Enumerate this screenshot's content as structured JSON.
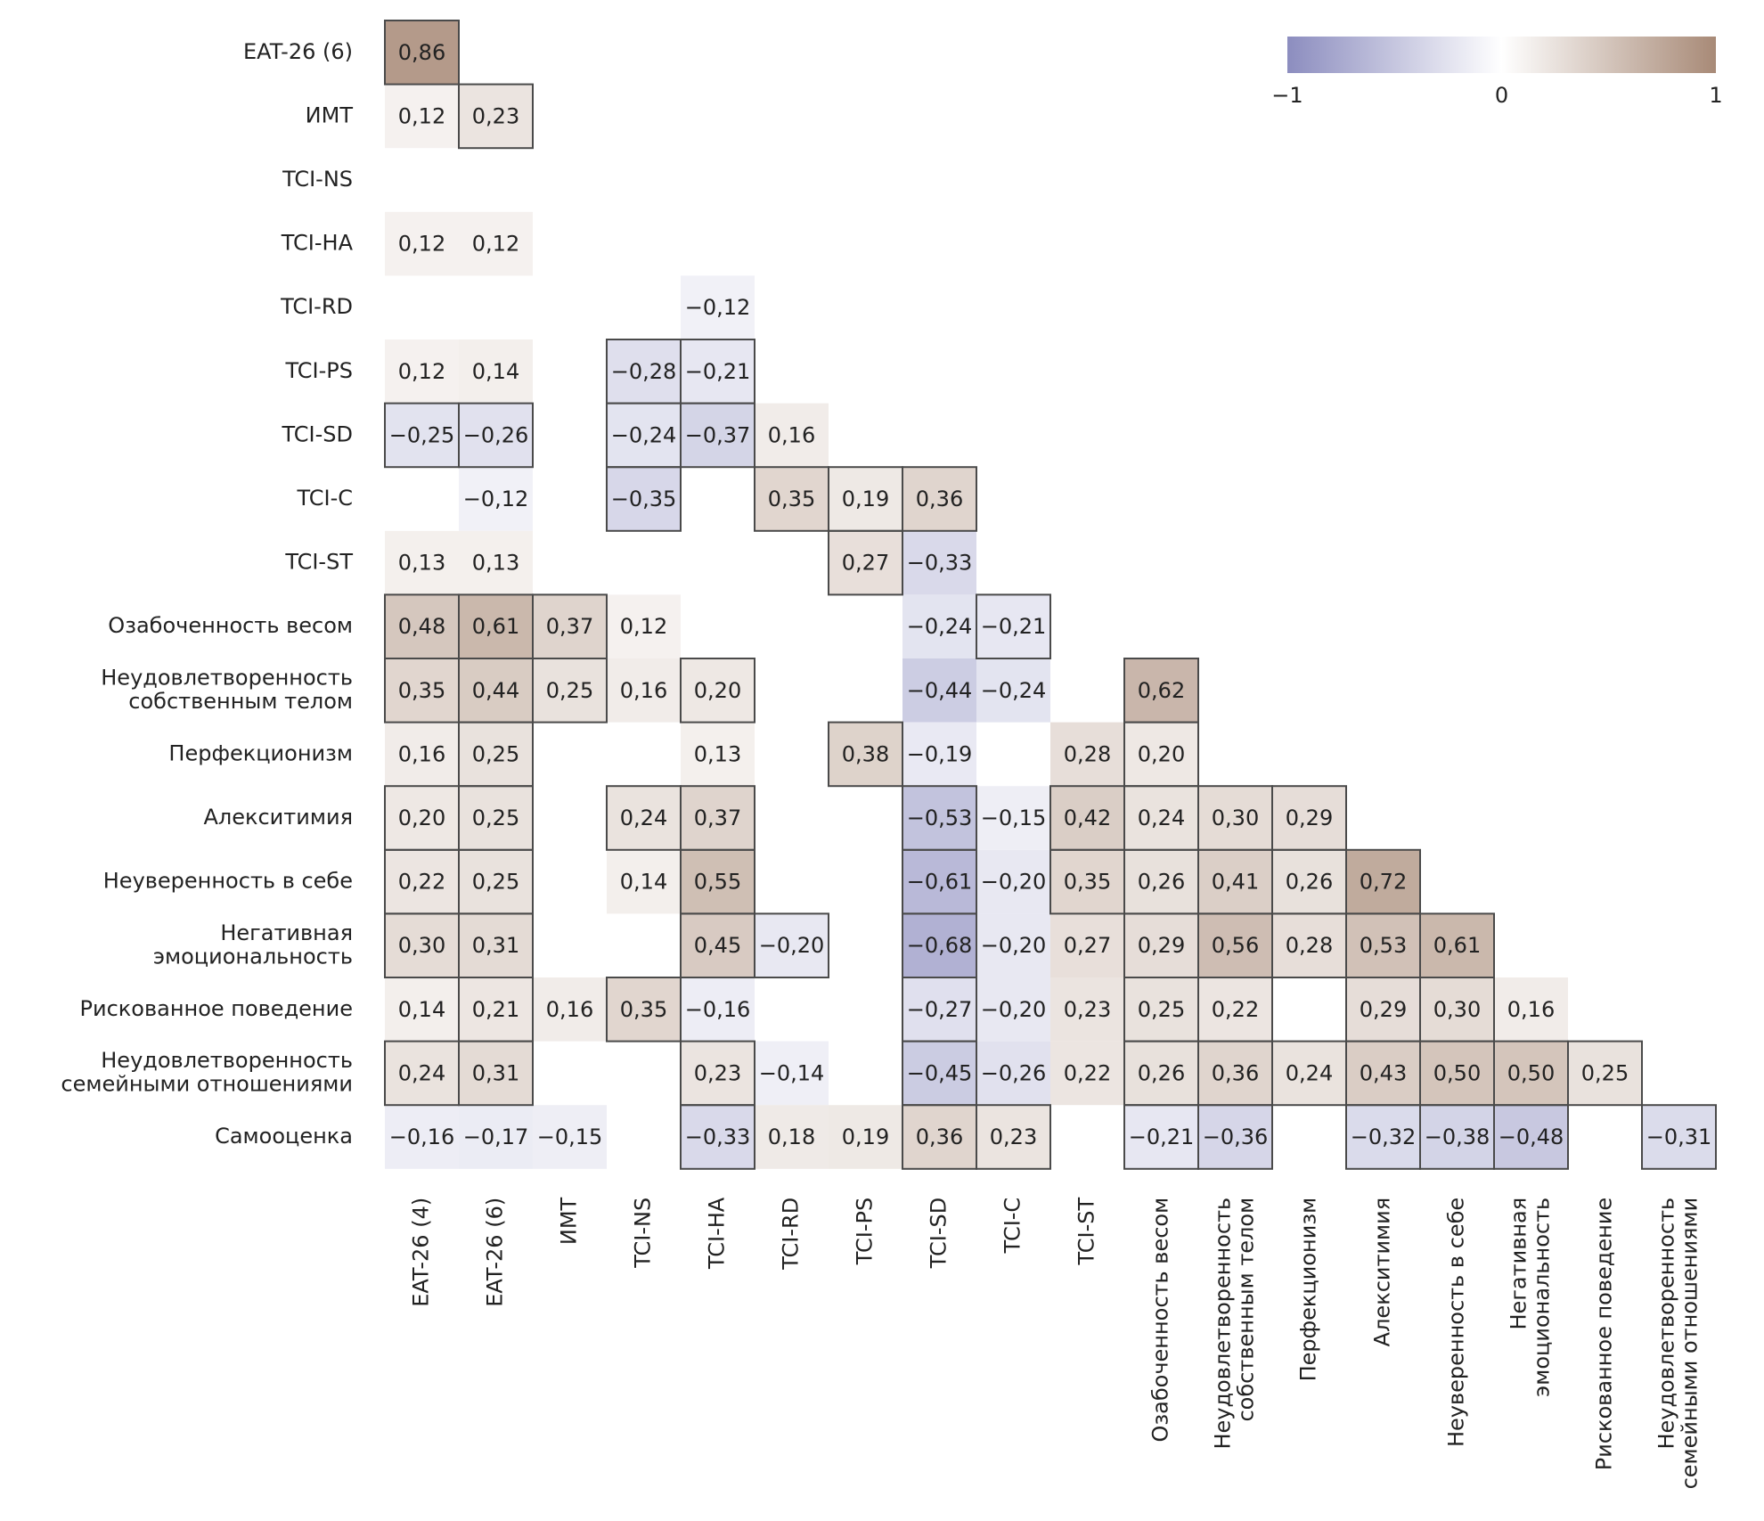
{
  "chart_data": {
    "type": "heatmap",
    "rows": [
      "EAT-26 (6)",
      "ИМТ",
      "TCI-NS",
      "TCI-HA",
      "TCI-RD",
      "TCI-PS",
      "TCI-SD",
      "TCI-C",
      "TCI-ST",
      "Озабоченность весом",
      "Неудовлетворенность\nсобственным телом",
      "Перфекционизм",
      "Алекситимия",
      "Неуверенность в себе",
      "Негативная\nэмоциональность",
      "Рискованное поведение",
      "Неудовлетворенность\nсемейными отношениями",
      "Самооценка"
    ],
    "columns": [
      "EAT-26 (4)",
      "EAT-26 (6)",
      "ИМТ",
      "TCI-NS",
      "TCI-HA",
      "TCI-RD",
      "TCI-PS",
      "TCI-SD",
      "TCI-C",
      "TCI-ST",
      "Озабоченность весом",
      "Неудовлетворенность\nсобственным телом",
      "Перфекционизм",
      "Алекситимия",
      "Неуверенность в себе",
      "Негативная\nэмоциональность",
      "Рискованное поведение",
      "Неудовлетворенность\nсемейными отношениями"
    ],
    "values": [
      [
        0.86,
        null,
        null,
        null,
        null,
        null,
        null,
        null,
        null,
        null,
        null,
        null,
        null,
        null,
        null,
        null,
        null,
        null
      ],
      [
        0.12,
        0.23,
        null,
        null,
        null,
        null,
        null,
        null,
        null,
        null,
        null,
        null,
        null,
        null,
        null,
        null,
        null,
        null
      ],
      [
        null,
        null,
        null,
        null,
        null,
        null,
        null,
        null,
        null,
        null,
        null,
        null,
        null,
        null,
        null,
        null,
        null,
        null
      ],
      [
        0.12,
        0.12,
        null,
        null,
        null,
        null,
        null,
        null,
        null,
        null,
        null,
        null,
        null,
        null,
        null,
        null,
        null,
        null
      ],
      [
        null,
        null,
        null,
        null,
        -0.12,
        null,
        null,
        null,
        null,
        null,
        null,
        null,
        null,
        null,
        null,
        null,
        null,
        null
      ],
      [
        0.12,
        0.14,
        null,
        -0.28,
        -0.21,
        null,
        null,
        null,
        null,
        null,
        null,
        null,
        null,
        null,
        null,
        null,
        null,
        null
      ],
      [
        -0.25,
        -0.26,
        null,
        -0.24,
        -0.37,
        0.16,
        null,
        null,
        null,
        null,
        null,
        null,
        null,
        null,
        null,
        null,
        null,
        null
      ],
      [
        null,
        -0.12,
        null,
        -0.35,
        null,
        0.35,
        0.19,
        0.36,
        null,
        null,
        null,
        null,
        null,
        null,
        null,
        null,
        null,
        null
      ],
      [
        0.13,
        0.13,
        null,
        null,
        null,
        null,
        0.27,
        -0.33,
        null,
        null,
        null,
        null,
        null,
        null,
        null,
        null,
        null,
        null
      ],
      [
        0.48,
        0.61,
        0.37,
        0.12,
        null,
        null,
        null,
        -0.24,
        -0.21,
        null,
        null,
        null,
        null,
        null,
        null,
        null,
        null,
        null
      ],
      [
        0.35,
        0.44,
        0.25,
        0.16,
        0.2,
        null,
        null,
        -0.44,
        -0.24,
        null,
        0.62,
        null,
        null,
        null,
        null,
        null,
        null,
        null
      ],
      [
        0.16,
        0.25,
        null,
        null,
        0.13,
        null,
        0.38,
        -0.19,
        null,
        0.28,
        0.2,
        null,
        null,
        null,
        null,
        null,
        null,
        null
      ],
      [
        0.2,
        0.25,
        null,
        0.24,
        0.37,
        null,
        null,
        -0.53,
        -0.15,
        0.42,
        0.24,
        0.3,
        0.29,
        null,
        null,
        null,
        null,
        null
      ],
      [
        0.22,
        0.25,
        null,
        0.14,
        0.55,
        null,
        null,
        -0.61,
        -0.2,
        0.35,
        0.26,
        0.41,
        0.26,
        0.72,
        null,
        null,
        null,
        null
      ],
      [
        0.3,
        0.31,
        null,
        null,
        0.45,
        -0.2,
        null,
        -0.68,
        -0.2,
        0.27,
        0.29,
        0.56,
        0.28,
        0.53,
        0.61,
        null,
        null,
        null
      ],
      [
        0.14,
        0.21,
        0.16,
        0.35,
        -0.16,
        null,
        null,
        -0.27,
        -0.2,
        0.23,
        0.25,
        0.22,
        null,
        0.29,
        0.3,
        0.16,
        null,
        null
      ],
      [
        0.24,
        0.31,
        null,
        null,
        0.23,
        -0.14,
        null,
        -0.45,
        -0.26,
        0.22,
        0.26,
        0.36,
        0.24,
        0.43,
        0.5,
        0.5,
        0.25,
        null
      ],
      [
        -0.16,
        -0.17,
        -0.15,
        null,
        -0.33,
        0.18,
        0.19,
        0.36,
        0.23,
        null,
        -0.21,
        -0.36,
        null,
        -0.32,
        -0.38,
        -0.48,
        null,
        -0.31
      ]
    ],
    "value_labels": [
      [
        "0,86",
        null,
        null,
        null,
        null,
        null,
        null,
        null,
        null,
        null,
        null,
        null,
        null,
        null,
        null,
        null,
        null,
        null
      ],
      [
        "0,12",
        "0,23",
        null,
        null,
        null,
        null,
        null,
        null,
        null,
        null,
        null,
        null,
        null,
        null,
        null,
        null,
        null,
        null
      ],
      [
        null,
        null,
        null,
        null,
        null,
        null,
        null,
        null,
        null,
        null,
        null,
        null,
        null,
        null,
        null,
        null,
        null,
        null
      ],
      [
        "0,12",
        "0,12",
        null,
        null,
        null,
        null,
        null,
        null,
        null,
        null,
        null,
        null,
        null,
        null,
        null,
        null,
        null,
        null
      ],
      [
        null,
        null,
        null,
        null,
        "−0,12",
        null,
        null,
        null,
        null,
        null,
        null,
        null,
        null,
        null,
        null,
        null,
        null,
        null
      ],
      [
        "0,12",
        "0,14",
        null,
        "−0,28",
        "−0,21",
        null,
        null,
        null,
        null,
        null,
        null,
        null,
        null,
        null,
        null,
        null,
        null,
        null
      ],
      [
        "−0,25",
        "−0,26",
        null,
        "−0,24",
        "−0,37",
        "0,16",
        null,
        null,
        null,
        null,
        null,
        null,
        null,
        null,
        null,
        null,
        null,
        null
      ],
      [
        null,
        "−0,12",
        null,
        "−0,35",
        null,
        "0,35",
        "0,19",
        "0,36",
        null,
        null,
        null,
        null,
        null,
        null,
        null,
        null,
        null,
        null
      ],
      [
        "0,13",
        "0,13",
        null,
        null,
        null,
        null,
        "0,27",
        "−0,33",
        null,
        null,
        null,
        null,
        null,
        null,
        null,
        null,
        null,
        null
      ],
      [
        "0,48",
        "0,61",
        "0,37",
        "0,12",
        null,
        null,
        null,
        "−0,24",
        "−0,21",
        null,
        null,
        null,
        null,
        null,
        null,
        null,
        null,
        null
      ],
      [
        "0,35",
        "0,44",
        "0,25",
        "0,16",
        "0,20",
        null,
        null,
        "−0,44",
        "−0,24",
        null,
        "0,62",
        null,
        null,
        null,
        null,
        null,
        null,
        null
      ],
      [
        "0,16",
        "0,25",
        null,
        null,
        "0,13",
        null,
        "0,38",
        "−0,19",
        null,
        "0,28",
        "0,20",
        null,
        null,
        null,
        null,
        null,
        null,
        null
      ],
      [
        "0,20",
        "0,25",
        null,
        "0,24",
        "0,37",
        null,
        null,
        "−0,53",
        "−0,15",
        "0,42",
        "0,24",
        "0,30",
        "0,29",
        null,
        null,
        null,
        null,
        null
      ],
      [
        "0,22",
        "0,25",
        null,
        "0,14",
        "0,55",
        null,
        null,
        "−0,61",
        "−0,20",
        "0,35",
        "0,26",
        "0,41",
        "0,26",
        "0,72",
        null,
        null,
        null,
        null
      ],
      [
        "0,30",
        "0,31",
        null,
        null,
        "0,45",
        "−0,20",
        null,
        "−0,68",
        "−0,20",
        "0,27",
        "0,29",
        "0,56",
        "0,28",
        "0,53",
        "0,61",
        null,
        null,
        null
      ],
      [
        "0,14",
        "0,21",
        "0,16",
        "0,35",
        "−0,16",
        null,
        null,
        "−0,27",
        "−0,20",
        "0,23",
        "0,25",
        "0,22",
        null,
        "0,29",
        "0,30",
        "0,16",
        null,
        null
      ],
      [
        "0,24",
        "0,31",
        null,
        null,
        "0,23",
        "−0,14",
        null,
        "−0,45",
        "−0,26",
        "0,22",
        "0,26",
        "0,36",
        "0,24",
        "0,43",
        "0,50",
        "0,50",
        "0,25",
        null
      ],
      [
        "−0,16",
        "−0,17",
        "−0,15",
        null,
        "−0,33",
        "0,18",
        "0,19",
        "0,36",
        "0,23",
        null,
        "−0,21",
        "−0,36",
        null,
        "−0,32",
        "−0,38",
        "−0,48",
        null,
        "−0,31"
      ]
    ],
    "outlined": [
      [
        true,
        false,
        false,
        false,
        false,
        false,
        false,
        false,
        false,
        false,
        false,
        false,
        false,
        false,
        false,
        false,
        false,
        false
      ],
      [
        false,
        true,
        false,
        false,
        false,
        false,
        false,
        false,
        false,
        false,
        false,
        false,
        false,
        false,
        false,
        false,
        false,
        false
      ],
      [
        false,
        false,
        false,
        false,
        false,
        false,
        false,
        false,
        false,
        false,
        false,
        false,
        false,
        false,
        false,
        false,
        false,
        false
      ],
      [
        false,
        false,
        false,
        false,
        false,
        false,
        false,
        false,
        false,
        false,
        false,
        false,
        false,
        false,
        false,
        false,
        false,
        false
      ],
      [
        false,
        false,
        false,
        false,
        false,
        false,
        false,
        false,
        false,
        false,
        false,
        false,
        false,
        false,
        false,
        false,
        false,
        false
      ],
      [
        false,
        false,
        false,
        true,
        true,
        false,
        false,
        false,
        false,
        false,
        false,
        false,
        false,
        false,
        false,
        false,
        false,
        false
      ],
      [
        true,
        true,
        false,
        true,
        true,
        false,
        false,
        false,
        false,
        false,
        false,
        false,
        false,
        false,
        false,
        false,
        false,
        false
      ],
      [
        false,
        false,
        false,
        true,
        false,
        true,
        true,
        true,
        false,
        false,
        false,
        false,
        false,
        false,
        false,
        false,
        false,
        false
      ],
      [
        false,
        false,
        false,
        false,
        false,
        false,
        true,
        false,
        false,
        false,
        false,
        false,
        false,
        false,
        false,
        false,
        false,
        false
      ],
      [
        true,
        true,
        true,
        false,
        false,
        false,
        false,
        false,
        true,
        false,
        false,
        false,
        false,
        false,
        false,
        false,
        false,
        false
      ],
      [
        true,
        true,
        true,
        false,
        true,
        false,
        false,
        false,
        false,
        false,
        true,
        false,
        false,
        false,
        false,
        false,
        false,
        false
      ],
      [
        false,
        true,
        false,
        false,
        false,
        false,
        true,
        false,
        false,
        false,
        true,
        false,
        false,
        false,
        false,
        false,
        false,
        false
      ],
      [
        true,
        true,
        false,
        true,
        true,
        false,
        false,
        true,
        false,
        true,
        true,
        true,
        true,
        false,
        false,
        false,
        false,
        false
      ],
      [
        true,
        true,
        false,
        false,
        true,
        false,
        false,
        true,
        false,
        true,
        true,
        true,
        true,
        true,
        false,
        false,
        false,
        false
      ],
      [
        true,
        true,
        false,
        false,
        true,
        true,
        false,
        true,
        false,
        false,
        true,
        true,
        true,
        true,
        true,
        false,
        false,
        false
      ],
      [
        false,
        true,
        false,
        true,
        false,
        false,
        false,
        true,
        false,
        false,
        true,
        true,
        false,
        true,
        true,
        false,
        false,
        false
      ],
      [
        true,
        true,
        false,
        false,
        true,
        false,
        false,
        true,
        false,
        false,
        true,
        true,
        true,
        true,
        true,
        true,
        true,
        false
      ],
      [
        false,
        false,
        false,
        false,
        true,
        false,
        false,
        true,
        true,
        false,
        true,
        true,
        false,
        true,
        true,
        true,
        false,
        true
      ]
    ],
    "colorscale": [
      "#8c8dbf",
      "#ffffff",
      "#a88a77"
    ],
    "outline_color": "#4a4a4a",
    "zlim": [
      -1,
      1
    ],
    "zticks": [
      {
        "value": -1,
        "label": "−1"
      },
      0,
      1
    ]
  }
}
